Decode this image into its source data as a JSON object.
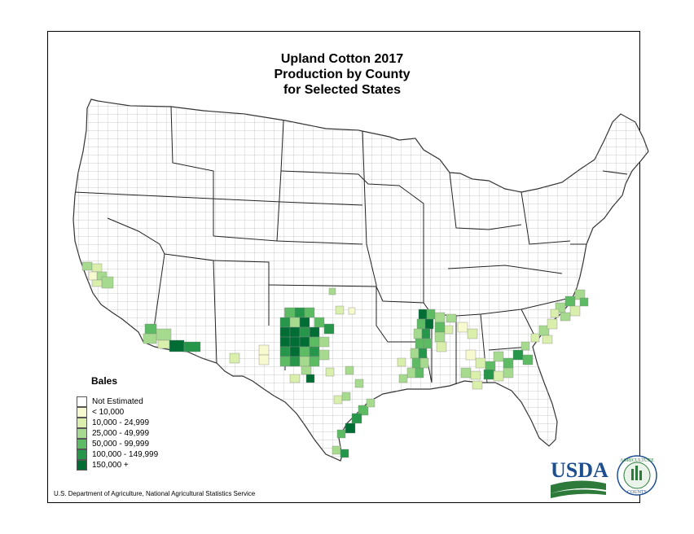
{
  "title": {
    "line1": "Upland Cotton 2017",
    "line2": "Production by County",
    "line3": "for Selected States"
  },
  "legend": {
    "title": "Bales",
    "items": [
      {
        "label": "Not Estimated",
        "color": "#ffffff"
      },
      {
        "label": "< 10,000",
        "color": "#f7f9cf"
      },
      {
        "label": "10,000 -  24,999",
        "color": "#d9efab"
      },
      {
        "label": "25,000 -  49,999",
        "color": "#a6da8e"
      },
      {
        "label": "50,000 -  99,999",
        "color": "#5dbb63"
      },
      {
        "label": "100,000 - 149,999",
        "color": "#26964a"
      },
      {
        "label": "150,000 +",
        "color": "#006d35"
      }
    ]
  },
  "source": "U.S. Department of Agriculture, National Agricultural Statistics Service",
  "logo": {
    "text": "USDA",
    "seal_text_top": "AGRICULTURE",
    "seal_text_bottom": "COUNTS"
  },
  "colors": {
    "usda_blue": "#1d4e8f",
    "usda_green": "#2d7a3a"
  }
}
